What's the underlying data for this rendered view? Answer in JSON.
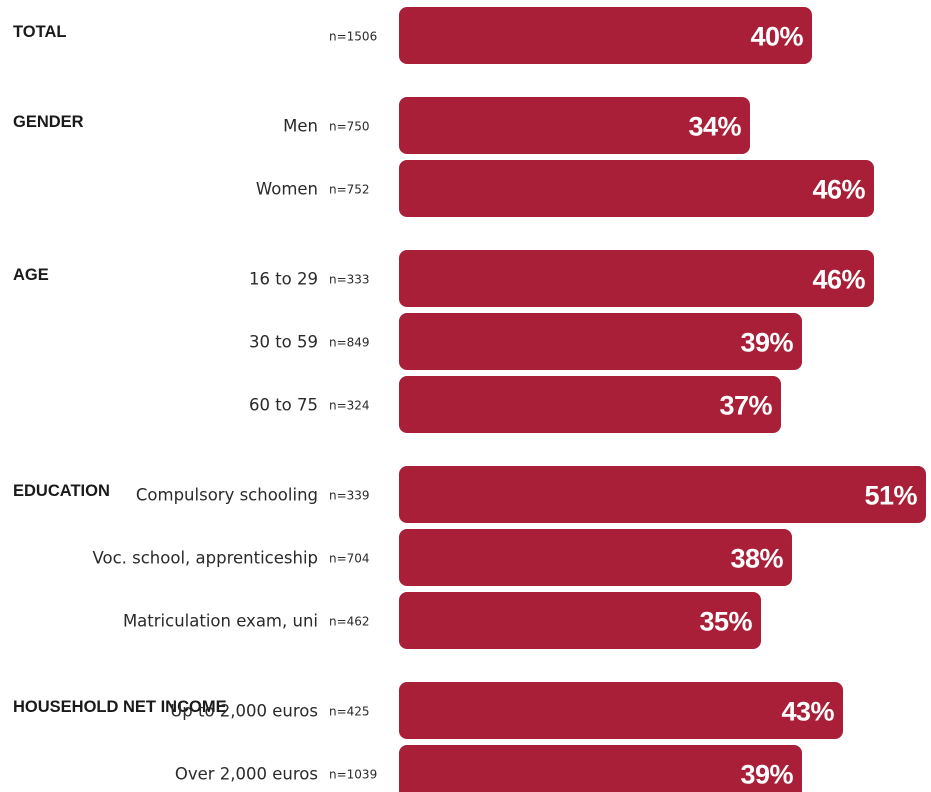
{
  "colors": {
    "bar": "#a81f37",
    "value_text": "#ffffff",
    "label_text": "#2a2a2a"
  },
  "chart_data": {
    "type": "bar",
    "orientation": "horizontal",
    "unit": "%",
    "groups": [
      {
        "name": "TOTAL",
        "rows": [
          {
            "label": "",
            "n": "n=1506",
            "value": 40,
            "display": "40%"
          }
        ]
      },
      {
        "name": "GENDER",
        "rows": [
          {
            "label": "Men",
            "n": "n=750",
            "value": 34,
            "display": "34%"
          },
          {
            "label": "Women",
            "n": "n=752",
            "value": 46,
            "display": "46%"
          }
        ]
      },
      {
        "name": "AGE",
        "rows": [
          {
            "label": "16 to 29",
            "n": "n=333",
            "value": 46,
            "display": "46%"
          },
          {
            "label": "30 to 59",
            "n": "n=849",
            "value": 39,
            "display": "39%"
          },
          {
            "label": "60 to 75",
            "n": "n=324",
            "value": 37,
            "display": "37%"
          }
        ]
      },
      {
        "name": "EDUCATION",
        "rows": [
          {
            "label": "Compulsory schooling",
            "n": "n=339",
            "value": 51,
            "display": "51%"
          },
          {
            "label": "Voc. school, apprenticeship",
            "n": "n=704",
            "value": 38,
            "display": "38%"
          },
          {
            "label": "Matriculation exam, uni",
            "n": "n=462",
            "value": 35,
            "display": "35%"
          }
        ]
      },
      {
        "name": "HOUSEHOLD NET INCOME",
        "rows": [
          {
            "label": "Up to 2,000 euros",
            "n": "n=425",
            "value": 43,
            "display": "43%"
          },
          {
            "label": "Over 2,000 euros",
            "n": "n=1039",
            "value": 39,
            "display": "39%"
          }
        ]
      }
    ]
  }
}
